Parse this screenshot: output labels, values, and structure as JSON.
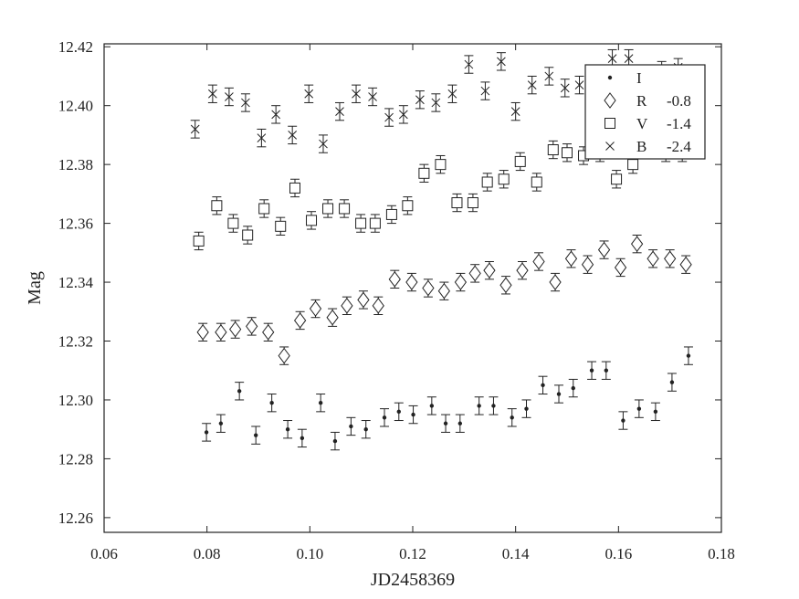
{
  "chart_data": {
    "type": "scatter",
    "xlabel": "JD2458369",
    "ylabel": "Mag",
    "xlim": [
      0.06,
      0.18
    ],
    "ylim": [
      12.421,
      12.255
    ],
    "y_axis_inverted": true,
    "xticks": [
      "0.06",
      "0.08",
      "0.10",
      "0.12",
      "0.14",
      "0.16",
      "0.18"
    ],
    "yticks": [
      "12.26",
      "12.28",
      "12.30",
      "12.32",
      "12.34",
      "12.36",
      "12.38",
      "12.40",
      "12.42"
    ],
    "grid": false,
    "legend_position": "top-right",
    "error_bar": 0.003,
    "series": [
      {
        "name": "I",
        "offset": "",
        "marker": "dot",
        "x": [
          0.0799,
          0.0827,
          0.0863,
          0.0895,
          0.0926,
          0.0957,
          0.0985,
          0.1021,
          0.1049,
          0.108,
          0.1109,
          0.1145,
          0.1173,
          0.1201,
          0.1237,
          0.1264,
          0.1292,
          0.1329,
          0.1357,
          0.1393,
          0.1421,
          0.1453,
          0.1484,
          0.1512,
          0.1548,
          0.1576,
          0.1609,
          0.164,
          0.1672,
          0.1704,
          0.1736
        ],
        "y": [
          12.289,
          12.292,
          12.303,
          12.288,
          12.299,
          12.29,
          12.287,
          12.299,
          12.286,
          12.291,
          12.29,
          12.294,
          12.296,
          12.295,
          12.298,
          12.292,
          12.292,
          12.298,
          12.298,
          12.294,
          12.297,
          12.305,
          12.302,
          12.304,
          12.31,
          12.31,
          12.293,
          12.297,
          12.296,
          12.306,
          12.315
        ]
      },
      {
        "name": "R",
        "offset": "-0.8",
        "marker": "diamond",
        "x": [
          0.0792,
          0.0827,
          0.0855,
          0.0887,
          0.0919,
          0.095,
          0.0981,
          0.1011,
          0.1044,
          0.1072,
          0.1104,
          0.1133,
          0.1165,
          0.1198,
          0.123,
          0.1261,
          0.1293,
          0.1321,
          0.1349,
          0.1381,
          0.1413,
          0.1445,
          0.1477,
          0.1508,
          0.154,
          0.1572,
          0.1604,
          0.1636,
          0.1667,
          0.17,
          0.1731
        ],
        "y": [
          12.323,
          12.323,
          12.324,
          12.325,
          12.323,
          12.315,
          12.327,
          12.331,
          12.328,
          12.332,
          12.334,
          12.332,
          12.341,
          12.34,
          12.338,
          12.337,
          12.34,
          12.343,
          12.344,
          12.339,
          12.344,
          12.347,
          12.34,
          12.348,
          12.346,
          12.351,
          12.345,
          12.353,
          12.348,
          12.348,
          12.346
        ]
      },
      {
        "name": "V",
        "offset": "-1.4",
        "marker": "square",
        "x": [
          0.0784,
          0.0819,
          0.0851,
          0.0879,
          0.0911,
          0.0943,
          0.0971,
          0.1003,
          0.1035,
          0.1067,
          0.1099,
          0.1127,
          0.1159,
          0.119,
          0.1222,
          0.1254,
          0.1286,
          0.1317,
          0.1345,
          0.1377,
          0.1409,
          0.1441,
          0.1473,
          0.15,
          0.1532,
          0.1564,
          0.1596,
          0.1628,
          0.166,
          0.1692,
          0.1724
        ],
        "y": [
          12.354,
          12.366,
          12.36,
          12.356,
          12.365,
          12.359,
          12.372,
          12.361,
          12.365,
          12.365,
          12.36,
          12.36,
          12.363,
          12.366,
          12.377,
          12.38,
          12.367,
          12.367,
          12.374,
          12.375,
          12.381,
          12.374,
          12.385,
          12.384,
          12.383,
          12.384,
          12.375,
          12.38,
          12.386,
          12.384,
          12.384
        ]
      },
      {
        "name": "B",
        "offset": "-2.4",
        "marker": "cross",
        "x": [
          0.0777,
          0.0811,
          0.0843,
          0.0875,
          0.0906,
          0.0934,
          0.0966,
          0.0998,
          0.1026,
          0.1058,
          0.109,
          0.1122,
          0.1154,
          0.1182,
          0.1214,
          0.1245,
          0.1277,
          0.1309,
          0.1341,
          0.1372,
          0.14,
          0.1432,
          0.1465,
          0.1496,
          0.1524,
          0.1556,
          0.1588,
          0.162,
          0.1652,
          0.1684,
          0.1716
        ],
        "y": [
          12.392,
          12.404,
          12.403,
          12.401,
          12.389,
          12.397,
          12.39,
          12.404,
          12.387,
          12.398,
          12.404,
          12.403,
          12.396,
          12.397,
          12.402,
          12.401,
          12.404,
          12.414,
          12.405,
          12.415,
          12.398,
          12.407,
          12.41,
          12.406,
          12.407,
          12.405,
          12.416,
          12.416,
          12.408,
          12.412,
          12.413
        ]
      }
    ]
  }
}
